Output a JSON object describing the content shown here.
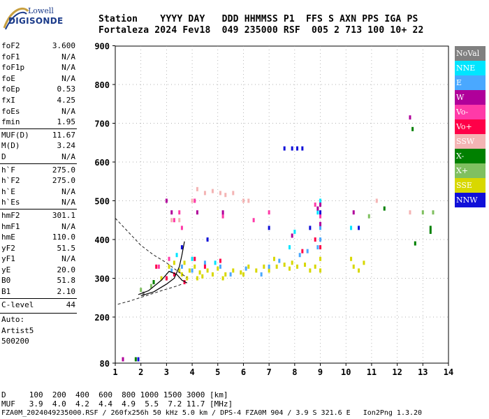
{
  "logo": {
    "line1": "Lowell",
    "line2": "DIGISONDE"
  },
  "header": {
    "row1": "Station    YYYY DAY   DDD HHMMSS P1  FFS S AXN PPS IGA PS",
    "row2": "Fortaleza 2024 Fev18  049 235000 RSF  005 2 713 100 10+ 22"
  },
  "params": [
    {
      "name": "foF2",
      "value": "3.600"
    },
    {
      "name": "foF1",
      "value": "N/A"
    },
    {
      "name": "foF1p",
      "value": "N/A"
    },
    {
      "name": "foE",
      "value": "N/A"
    },
    {
      "name": "foEp",
      "value": "0.53"
    },
    {
      "name": "fxI",
      "value": "4.25"
    },
    {
      "name": "foEs",
      "value": "N/A"
    },
    {
      "name": "fmin",
      "value": "1.95"
    },
    {
      "name": "MUF(D)",
      "value": "11.67"
    },
    {
      "name": "M(D)",
      "value": "3.24"
    },
    {
      "name": "D",
      "value": "N/A"
    },
    {
      "name": "h`F",
      "value": "275.0"
    },
    {
      "name": "h`F2",
      "value": "275.0"
    },
    {
      "name": "h`E",
      "value": "N/A"
    },
    {
      "name": "h`Es",
      "value": "N/A"
    },
    {
      "name": "hmF2",
      "value": "301.1"
    },
    {
      "name": "hmF1",
      "value": "N/A"
    },
    {
      "name": "hmE",
      "value": "110.0"
    },
    {
      "name": "yF2",
      "value": "51.5"
    },
    {
      "name": "yF1",
      "value": "N/A"
    },
    {
      "name": "yE",
      "value": "20.0"
    },
    {
      "name": "B0",
      "value": "51.8"
    },
    {
      "name": "B1",
      "value": "2.10"
    },
    {
      "name": "C-level",
      "value": "44"
    }
  ],
  "auto": [
    "Auto:",
    "Artist5",
    "500200"
  ],
  "legend": [
    {
      "label": "NoVal",
      "color": "#808080"
    },
    {
      "label": "NNE",
      "color": "#00e5ff"
    },
    {
      "label": "E",
      "color": "#4aa8ff"
    },
    {
      "label": "W",
      "color": "#b0009a"
    },
    {
      "label": "Vo-",
      "color": "#ff3aa8"
    },
    {
      "label": "Vo+",
      "color": "#ff0048"
    },
    {
      "label": "SSW",
      "color": "#f4b4b4"
    },
    {
      "label": "X-",
      "color": "#008000"
    },
    {
      "label": "X+",
      "color": "#80c060"
    },
    {
      "label": "SSE",
      "color": "#d8d800"
    },
    {
      "label": "NNW",
      "color": "#1010d8"
    }
  ],
  "footer": {
    "d_row": "D     100  200  400  600  800 1000 1500 3000 [km]",
    "muf_row": "MUF   3.9  4.0  4.2  4.4  4.9  5.5  7.2 11.7 [MHz]",
    "file_row": "FZA0M_2024049235000.RSF / 260fx256h 50 kHz 5.0 km / DPS-4 FZA0M 904 / 3.9 S 321.6 E   Ion2Png 1.3.20"
  },
  "chart_data": {
    "type": "scatter",
    "title": "",
    "xlabel": "",
    "ylabel": "",
    "xlim": [
      1,
      14
    ],
    "ylim": [
      80,
      900
    ],
    "xticks": [
      1,
      2,
      3,
      4,
      5,
      6,
      7,
      8,
      9,
      10,
      11,
      12,
      13,
      14
    ],
    "yticks": [
      80,
      200,
      300,
      400,
      500,
      600,
      700,
      800,
      900
    ],
    "grid": true,
    "series": [
      {
        "color": "#d8d800",
        "points": [
          [
            3.1,
            330
          ],
          [
            3.3,
            340
          ],
          [
            3.5,
            320
          ],
          [
            3.7,
            340
          ],
          [
            3.9,
            320
          ],
          [
            4.1,
            330
          ],
          [
            4.3,
            315
          ],
          [
            4.6,
            320
          ],
          [
            4.8,
            310
          ],
          [
            5.0,
            325
          ],
          [
            5.3,
            310
          ],
          [
            5.6,
            320
          ],
          [
            5.9,
            315
          ],
          [
            6.2,
            330
          ],
          [
            6.5,
            320
          ],
          [
            6.8,
            330
          ],
          [
            7.0,
            320
          ],
          [
            7.3,
            330
          ],
          [
            7.6,
            335
          ],
          [
            7.9,
            340
          ],
          [
            8.1,
            330
          ],
          [
            8.4,
            335
          ],
          [
            8.6,
            320
          ],
          [
            8.8,
            330
          ],
          [
            9.0,
            320
          ],
          [
            9.0,
            350
          ],
          [
            10.2,
            350
          ],
          [
            10.3,
            330
          ],
          [
            10.5,
            320
          ],
          [
            10.7,
            340
          ],
          [
            4.4,
            305
          ],
          [
            4.2,
            300
          ],
          [
            3.8,
            300
          ],
          [
            3.6,
            310
          ],
          [
            2.5,
            290
          ],
          [
            2.8,
            300
          ],
          [
            7.2,
            350
          ],
          [
            7.8,
            325
          ],
          [
            6.0,
            310
          ],
          [
            5.2,
            300
          ]
        ]
      },
      {
        "color": "#4aa8ff",
        "points": [
          [
            3.2,
            320
          ],
          [
            3.6,
            330
          ],
          [
            4.0,
            320
          ],
          [
            4.5,
            340
          ],
          [
            5.1,
            330
          ],
          [
            5.5,
            310
          ],
          [
            6.1,
            325
          ],
          [
            6.7,
            310
          ],
          [
            7.4,
            345
          ],
          [
            8.2,
            360
          ],
          [
            8.5,
            370
          ],
          [
            8.9,
            380
          ],
          [
            9.0,
            400
          ],
          [
            9.0,
            430
          ],
          [
            7.0,
            330
          ]
        ]
      },
      {
        "color": "#00e5ff",
        "points": [
          [
            3.4,
            360
          ],
          [
            4.0,
            350
          ],
          [
            4.9,
            340
          ],
          [
            8.0,
            420
          ],
          [
            8.9,
            470
          ],
          [
            9.0,
            500
          ],
          [
            10.2,
            430
          ],
          [
            7.8,
            380
          ]
        ]
      },
      {
        "color": "#ff0048",
        "points": [
          [
            2.6,
            330
          ],
          [
            3.0,
            300
          ],
          [
            3.3,
            310
          ],
          [
            3.7,
            290
          ],
          [
            4.1,
            350
          ],
          [
            4.5,
            330
          ],
          [
            5.1,
            345
          ],
          [
            8.3,
            370
          ],
          [
            8.8,
            400
          ],
          [
            9.0,
            380
          ]
        ]
      },
      {
        "color": "#ff3aa8",
        "points": [
          [
            2.7,
            330
          ],
          [
            3.1,
            350
          ],
          [
            3.3,
            450
          ],
          [
            3.5,
            470
          ],
          [
            3.6,
            430
          ],
          [
            4.1,
            500
          ],
          [
            5.2,
            460
          ],
          [
            6.4,
            450
          ],
          [
            7.0,
            470
          ],
          [
            8.8,
            490
          ],
          [
            9.0,
            460
          ]
        ]
      },
      {
        "color": "#b0009a",
        "points": [
          [
            1.3,
            90
          ],
          [
            3.0,
            500
          ],
          [
            3.2,
            470
          ],
          [
            4.2,
            470
          ],
          [
            5.2,
            470
          ],
          [
            7.9,
            410
          ],
          [
            8.9,
            480
          ],
          [
            9.0,
            490
          ],
          [
            10.3,
            470
          ],
          [
            12.5,
            715
          ],
          [
            9.0,
            440
          ]
        ]
      },
      {
        "color": "#f4b4b4",
        "points": [
          [
            4.2,
            530
          ],
          [
            4.5,
            520
          ],
          [
            4.8,
            525
          ],
          [
            5.1,
            520
          ],
          [
            5.3,
            515
          ],
          [
            5.6,
            520
          ],
          [
            6.0,
            500
          ],
          [
            6.2,
            500
          ],
          [
            3.2,
            450
          ],
          [
            3.5,
            450
          ],
          [
            4.0,
            500
          ],
          [
            11.2,
            500
          ],
          [
            12.5,
            470
          ]
        ]
      },
      {
        "color": "#1010d8",
        "points": [
          [
            7.6,
            635
          ],
          [
            7.9,
            635
          ],
          [
            8.1,
            635
          ],
          [
            8.3,
            635
          ],
          [
            7.0,
            430
          ],
          [
            8.6,
            430
          ],
          [
            9.0,
            470
          ],
          [
            10.5,
            430
          ],
          [
            4.6,
            400
          ],
          [
            3.6,
            380
          ],
          [
            1.9,
            90
          ]
        ]
      },
      {
        "color": "#008000",
        "points": [
          [
            12.6,
            685
          ],
          [
            13.3,
            430
          ],
          [
            13.3,
            420
          ],
          [
            12.7,
            390
          ],
          [
            11.5,
            480
          ],
          [
            1.8,
            90
          ],
          [
            2.5,
            290
          ]
        ]
      },
      {
        "color": "#80c060",
        "points": [
          [
            10.9,
            460
          ],
          [
            2.0,
            270
          ],
          [
            2.4,
            280
          ],
          [
            13.0,
            470
          ],
          [
            13.4,
            470
          ]
        ]
      },
      {
        "color": "#808080",
        "points": [
          [
            2.1,
            260
          ]
        ]
      }
    ]
  }
}
